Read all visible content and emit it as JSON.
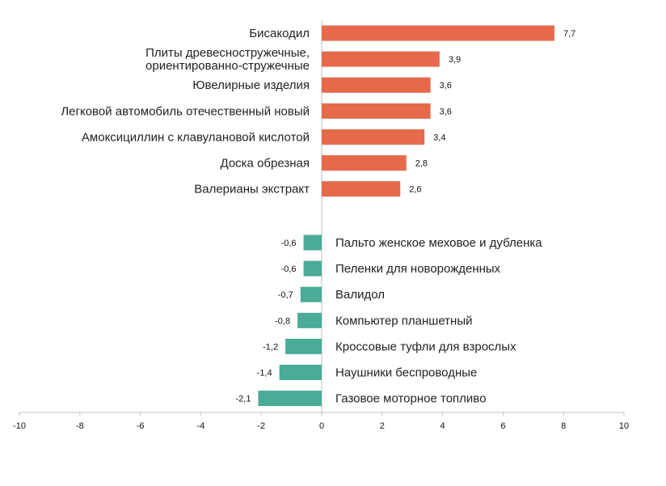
{
  "chart_data": {
    "type": "bar",
    "orientation": "horizontal",
    "title": "",
    "xlabel": "",
    "ylabel": "",
    "xlim": [
      -10,
      10
    ],
    "xticks": [
      -10,
      -8,
      -6,
      -4,
      -2,
      0,
      2,
      4,
      6,
      8,
      10
    ],
    "grid": false,
    "legend": "none",
    "colors": {
      "positive": "#e5694a",
      "negative": "#4aab96",
      "axis": "#bfbfbf"
    },
    "groups": [
      {
        "name": "increase",
        "items": [
          {
            "label": "Бисакодил",
            "value": 7.7,
            "value_label": "7,7"
          },
          {
            "label": "Плиты древесностружечные,\nориентированно-стружечные",
            "value": 3.9,
            "value_label": "3,9"
          },
          {
            "label": "Ювелирные изделия",
            "value": 3.6,
            "value_label": "3,6"
          },
          {
            "label": "Легковой автомобиль отечественный новый",
            "value": 3.6,
            "value_label": "3,6"
          },
          {
            "label": "Амоксициллин с клавулановой кислотой",
            "value": 3.4,
            "value_label": "3,4"
          },
          {
            "label": "Доска обрезная",
            "value": 2.8,
            "value_label": "2,8"
          },
          {
            "label": "Валерианы экстракт",
            "value": 2.6,
            "value_label": "2,6"
          }
        ]
      },
      {
        "name": "decrease",
        "items": [
          {
            "label": "Пальто женское меховое и дубленка",
            "value": -0.6,
            "value_label": "-0,6"
          },
          {
            "label": "Пеленки для новорожденных",
            "value": -0.6,
            "value_label": "-0,6"
          },
          {
            "label": "Валидол",
            "value": -0.7,
            "value_label": "-0,7"
          },
          {
            "label": "Компьютер планшетный",
            "value": -0.8,
            "value_label": "-0,8"
          },
          {
            "label": "Кроссовые туфли для взрослых",
            "value": -1.2,
            "value_label": "-1,2"
          },
          {
            "label": "Наушники беспроводные",
            "value": -1.4,
            "value_label": "-1,4"
          },
          {
            "label": "Газовое моторное топливо",
            "value": -2.1,
            "value_label": "-2,1"
          }
        ]
      }
    ]
  }
}
